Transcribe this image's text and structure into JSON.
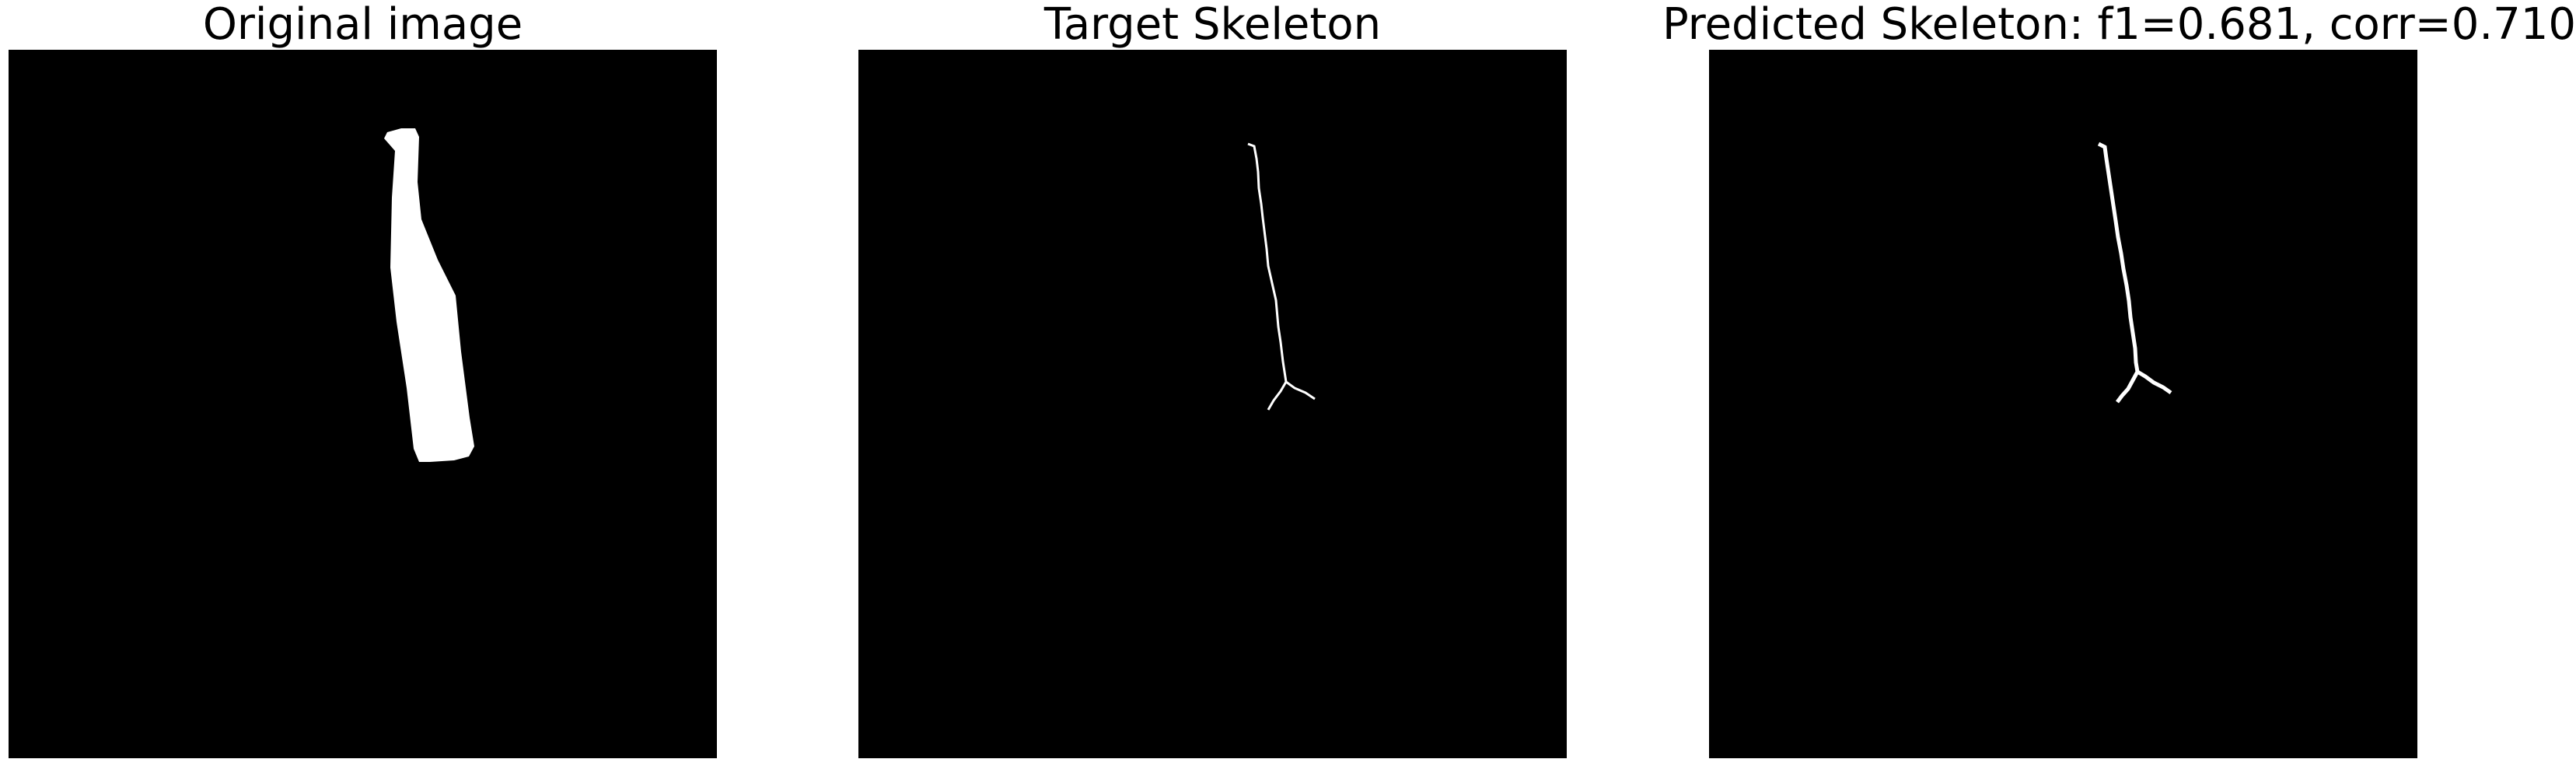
{
  "panels": [
    {
      "title": "Original image"
    },
    {
      "title": "Target Skeleton"
    },
    {
      "title": "Predicted Skeleton: f1=0.681, corr=0.710"
    }
  ],
  "colors": {
    "background": "#000000",
    "foreground": "#ffffff"
  }
}
